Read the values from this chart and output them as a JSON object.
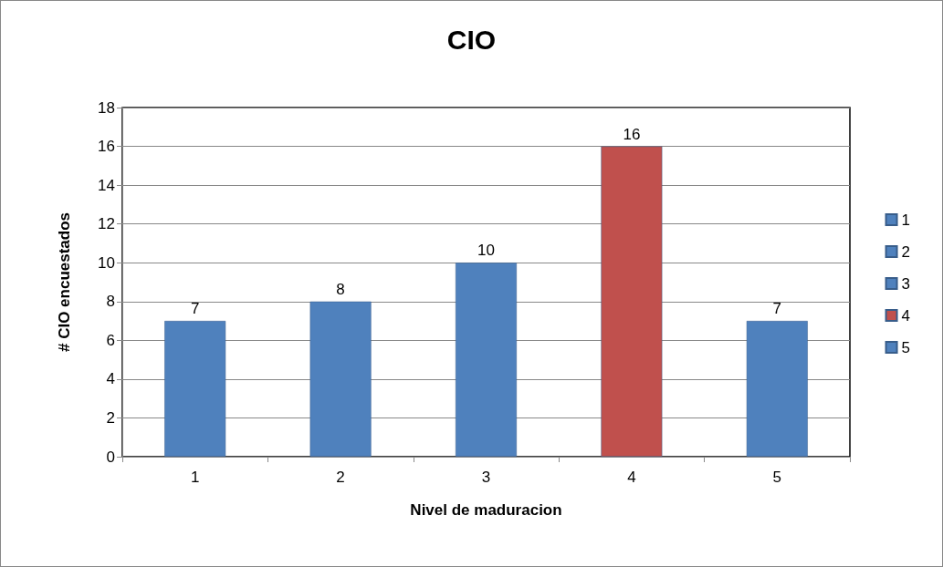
{
  "chart_data": {
    "type": "bar",
    "title": "CIO",
    "xlabel": "Nivel de maduracion",
    "ylabel": "# CIO encuestados",
    "categories": [
      "1",
      "2",
      "3",
      "4",
      "5"
    ],
    "series": [
      {
        "name": "1",
        "color": "#4f81bd",
        "values": [
          7,
          null,
          null,
          null,
          null
        ]
      },
      {
        "name": "2",
        "color": "#4f81bd",
        "values": [
          null,
          8,
          null,
          null,
          null
        ]
      },
      {
        "name": "3",
        "color": "#4f81bd",
        "values": [
          null,
          null,
          10,
          null,
          null
        ]
      },
      {
        "name": "4",
        "color": "#c0504d",
        "values": [
          null,
          null,
          null,
          16,
          null
        ]
      },
      {
        "name": "5",
        "color": "#4f81bd",
        "values": [
          null,
          null,
          null,
          null,
          7
        ]
      }
    ],
    "ylim": [
      0,
      18
    ],
    "yticks": [
      0,
      2,
      4,
      6,
      8,
      10,
      12,
      14,
      16,
      18
    ],
    "grid": "y",
    "legend": "right",
    "data_labels": true
  }
}
